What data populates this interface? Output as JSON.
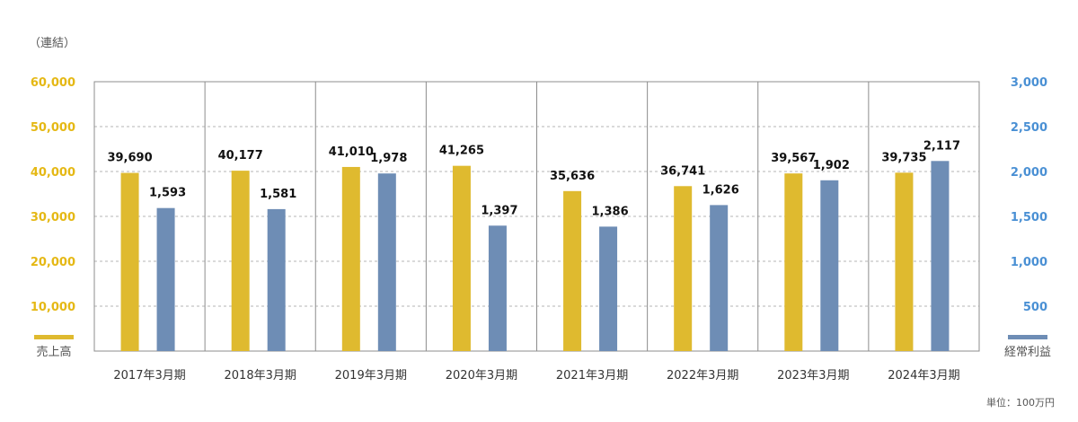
{
  "chart_data": {
    "type": "bar",
    "note_top": "（連結）",
    "unit_note": "単位：100万円",
    "categories": [
      "2017年3月期",
      "2018年3月期",
      "2019年3月期",
      "2020年3月期",
      "2021年3月期",
      "2022年3月期",
      "2023年3月期",
      "2024年3月期"
    ],
    "series": [
      {
        "name": "売上高",
        "axis": "left",
        "color": "#dfba2f",
        "values": [
          39690,
          40177,
          41010,
          41265,
          35636,
          36741,
          39567,
          39735
        ],
        "labels": [
          "39,690",
          "40,177",
          "41,010",
          "41,265",
          "35,636",
          "36,741",
          "39,567",
          "39,735"
        ]
      },
      {
        "name": "経常利益",
        "axis": "right",
        "color": "#6e8db5",
        "values": [
          1593,
          1581,
          1978,
          1397,
          1386,
          1626,
          1902,
          2117
        ],
        "labels": [
          "1,593",
          "1,581",
          "1,978",
          "1,397",
          "1,386",
          "1,626",
          "1,902",
          "2,117"
        ]
      }
    ],
    "y_left": {
      "range": [
        0,
        60000
      ],
      "ticks": [
        10000,
        20000,
        30000,
        40000,
        50000,
        60000
      ],
      "tick_labels": [
        "10,000",
        "20,000",
        "30,000",
        "40,000",
        "50,000",
        "60,000"
      ],
      "color": "#e5b814"
    },
    "y_right": {
      "range": [
        0,
        3000
      ],
      "ticks": [
        500,
        1000,
        1500,
        2000,
        2500,
        3000
      ],
      "tick_labels": [
        "500",
        "1,000",
        "1,500",
        "2,000",
        "2,500",
        "3,000"
      ],
      "color": "#4a90d4"
    },
    "grid": true
  }
}
